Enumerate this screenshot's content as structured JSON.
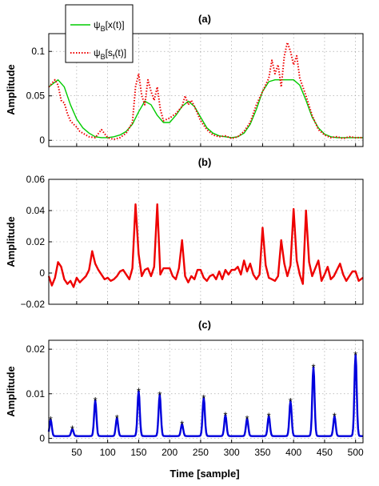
{
  "figure": {
    "xlabel": "Time [sample]"
  },
  "chart_data": [
    {
      "type": "line",
      "panel_label": "(a)",
      "ylabel": "Amplitude",
      "xlim": [
        5,
        512
      ],
      "ylim": [
        -0.007,
        0.12
      ],
      "yticks": [
        0,
        0.05,
        0.1
      ],
      "ytick_labels": [
        "0",
        "0.05",
        "0.1"
      ],
      "grid": true,
      "legend_position": "top-left",
      "series": [
        {
          "name": "ψB[x(t)]",
          "legend_main": "ψ",
          "legend_sub": "B",
          "legend_rest": "[x(t)]",
          "color": "#00cc00",
          "style": "solid",
          "x": [
            5,
            20,
            30,
            40,
            50,
            60,
            70,
            80,
            90,
            100,
            110,
            120,
            130,
            140,
            150,
            160,
            170,
            180,
            190,
            200,
            210,
            220,
            230,
            240,
            250,
            260,
            270,
            280,
            290,
            300,
            310,
            320,
            330,
            340,
            350,
            360,
            370,
            380,
            390,
            400,
            410,
            420,
            430,
            440,
            450,
            460,
            470,
            480,
            490,
            500,
            512
          ],
          "y": [
            0.06,
            0.068,
            0.06,
            0.04,
            0.024,
            0.014,
            0.008,
            0.004,
            0.003,
            0.003,
            0.004,
            0.006,
            0.01,
            0.018,
            0.032,
            0.044,
            0.04,
            0.028,
            0.02,
            0.02,
            0.028,
            0.038,
            0.044,
            0.038,
            0.026,
            0.014,
            0.008,
            0.005,
            0.004,
            0.003,
            0.004,
            0.008,
            0.018,
            0.035,
            0.055,
            0.066,
            0.068,
            0.068,
            0.068,
            0.068,
            0.062,
            0.045,
            0.026,
            0.014,
            0.007,
            0.004,
            0.003,
            0.003,
            0.003,
            0.003,
            0.003
          ]
        },
        {
          "name": "ψB[sf(t)]",
          "legend_main": "ψ",
          "legend_sub": "B",
          "legend_rest": "[s",
          "legend_sub2": "f",
          "legend_rest2": "(t)]",
          "color": "#ee0000",
          "style": "dotted",
          "x": [
            5,
            15,
            20,
            25,
            30,
            35,
            40,
            45,
            50,
            55,
            60,
            70,
            80,
            90,
            100,
            110,
            120,
            130,
            140,
            145,
            150,
            155,
            160,
            165,
            170,
            175,
            180,
            185,
            190,
            200,
            210,
            220,
            225,
            230,
            235,
            240,
            250,
            260,
            270,
            280,
            290,
            300,
            310,
            320,
            330,
            340,
            350,
            360,
            365,
            370,
            375,
            380,
            385,
            390,
            395,
            400,
            405,
            410,
            420,
            430,
            440,
            450,
            460,
            470,
            480,
            490,
            500,
            512
          ],
          "y": [
            0.06,
            0.068,
            0.062,
            0.045,
            0.042,
            0.03,
            0.022,
            0.018,
            0.015,
            0.01,
            0.008,
            0.004,
            0.003,
            0.012,
            0.003,
            0.001,
            0.003,
            0.008,
            0.02,
            0.06,
            0.075,
            0.05,
            0.04,
            0.068,
            0.055,
            0.045,
            0.06,
            0.035,
            0.022,
            0.025,
            0.03,
            0.038,
            0.05,
            0.04,
            0.045,
            0.038,
            0.022,
            0.012,
            0.006,
            0.004,
            0.005,
            0.002,
            0.004,
            0.01,
            0.02,
            0.04,
            0.055,
            0.07,
            0.09,
            0.075,
            0.085,
            0.06,
            0.095,
            0.11,
            0.1,
            0.085,
            0.095,
            0.07,
            0.05,
            0.028,
            0.012,
            0.006,
            0.003,
            0.004,
            0.002,
            0.004,
            0.003,
            0.003
          ]
        }
      ]
    },
    {
      "type": "line",
      "panel_label": "(b)",
      "ylabel": "Amplitude",
      "xlim": [
        5,
        512
      ],
      "ylim": [
        -0.02,
        0.06
      ],
      "yticks": [
        -0.02,
        0,
        0.02,
        0.04,
        0.06
      ],
      "ytick_labels": [
        "−0.02",
        "0",
        "0.02",
        "0.04",
        "0.06"
      ],
      "grid": true,
      "series": [
        {
          "name": "",
          "color": "#ee0000",
          "x": [
            5,
            10,
            15,
            20,
            25,
            30,
            35,
            40,
            45,
            50,
            55,
            60,
            65,
            70,
            75,
            80,
            85,
            90,
            95,
            100,
            105,
            110,
            115,
            120,
            125,
            130,
            135,
            140,
            145,
            150,
            155,
            160,
            165,
            170,
            175,
            180,
            185,
            190,
            195,
            200,
            205,
            210,
            215,
            220,
            225,
            230,
            235,
            240,
            245,
            250,
            255,
            260,
            265,
            270,
            275,
            280,
            285,
            290,
            295,
            300,
            305,
            310,
            315,
            320,
            325,
            330,
            335,
            340,
            345,
            350,
            355,
            360,
            365,
            370,
            375,
            380,
            385,
            390,
            395,
            400,
            405,
            410,
            415,
            420,
            425,
            430,
            435,
            440,
            445,
            450,
            455,
            460,
            465,
            470,
            475,
            480,
            485,
            490,
            495,
            500,
            505,
            512
          ],
          "y": [
            -0.002,
            -0.008,
            -0.003,
            0.007,
            0.004,
            -0.004,
            -0.007,
            -0.005,
            -0.009,
            -0.003,
            -0.006,
            -0.004,
            -0.002,
            0.002,
            0.014,
            0.006,
            0.002,
            -0.001,
            -0.004,
            -0.003,
            -0.005,
            -0.004,
            -0.002,
            0.001,
            0.002,
            -0.001,
            -0.004,
            0.003,
            0.044,
            0.012,
            -0.002,
            0.002,
            0.003,
            -0.002,
            0.004,
            0.044,
            -0.001,
            0.003,
            0.003,
            0.003,
            -0.002,
            -0.004,
            0.003,
            0.021,
            -0.002,
            -0.006,
            -0.002,
            -0.004,
            0.002,
            0.002,
            -0.003,
            -0.005,
            -0.002,
            -0.001,
            -0.004,
            0.001,
            -0.004,
            0.002,
            -0.001,
            0.002,
            0.002,
            0.004,
            -0.001,
            0.008,
            0.001,
            0.006,
            -0.001,
            -0.004,
            -0.001,
            0.029,
            0.005,
            -0.003,
            -0.004,
            -0.005,
            -0.002,
            0.021,
            0.006,
            -0.002,
            0.005,
            0.041,
            0.008,
            -0.001,
            -0.007,
            0.04,
            0.007,
            -0.002,
            0.003,
            0.008,
            -0.005,
            -0.001,
            0.004,
            -0.004,
            -0.002,
            0.002,
            0.006,
            -0.001,
            -0.005,
            -0.002,
            0.001,
            0.001,
            -0.005,
            -0.003
          ]
        }
      ]
    },
    {
      "type": "line",
      "panel_label": "(c)",
      "ylabel": "Amplitude",
      "xlabel": "Time [sample]",
      "xlim": [
        5,
        512
      ],
      "ylim": [
        -0.001,
        0.022
      ],
      "xticks": [
        50,
        100,
        150,
        200,
        250,
        300,
        350,
        400,
        450,
        500
      ],
      "xtick_labels": [
        "50",
        "100",
        "150",
        "200",
        "250",
        "300",
        "350",
        "400",
        "450",
        "500"
      ],
      "yticks": [
        0,
        0.01,
        0.02
      ],
      "ytick_labels": [
        "0",
        "0.01",
        "0.02"
      ],
      "grid": true,
      "series": [
        {
          "name": "",
          "color": "#0000dd",
          "baseline": 0.0005,
          "peaks": [
            {
              "x": 8,
              "y": 0.0042
            },
            {
              "x": 43,
              "y": 0.0021
            },
            {
              "x": 80,
              "y": 0.0085
            },
            {
              "x": 115,
              "y": 0.0046
            },
            {
              "x": 150,
              "y": 0.0106
            },
            {
              "x": 184,
              "y": 0.0098
            },
            {
              "x": 220,
              "y": 0.0032
            },
            {
              "x": 255,
              "y": 0.0091
            },
            {
              "x": 290,
              "y": 0.0052
            },
            {
              "x": 325,
              "y": 0.0044
            },
            {
              "x": 360,
              "y": 0.005
            },
            {
              "x": 395,
              "y": 0.0083
            },
            {
              "x": 432,
              "y": 0.016
            },
            {
              "x": 466,
              "y": 0.005
            },
            {
              "x": 500,
              "y": 0.0188
            }
          ]
        }
      ]
    }
  ]
}
